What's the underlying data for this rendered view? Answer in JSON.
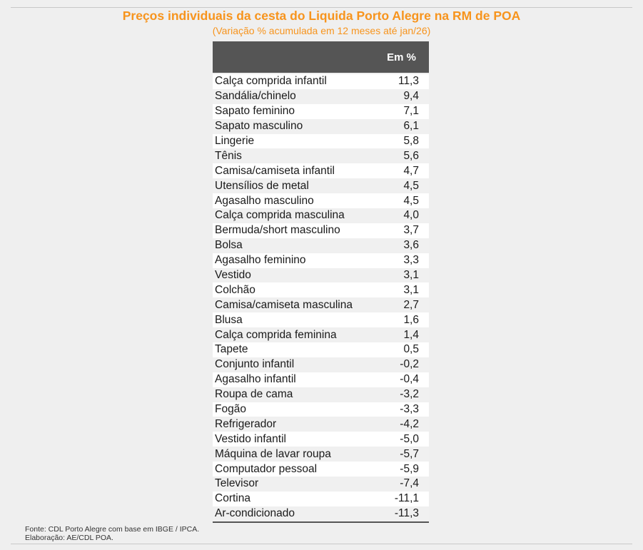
{
  "title": "Preços individuais da cesta do Liquida Porto Alegre na RM de POA",
  "subtitle": "(Variação % acumulada em 12 meses até jan/26)",
  "table": {
    "header": "Em %",
    "rows": [
      {
        "item": "Calça comprida infantil",
        "value": "11,3"
      },
      {
        "item": "Sandália/chinelo",
        "value": "9,4"
      },
      {
        "item": "Sapato feminino",
        "value": "7,1"
      },
      {
        "item": "Sapato masculino",
        "value": "6,1"
      },
      {
        "item": "Lingerie",
        "value": "5,8"
      },
      {
        "item": "Tênis",
        "value": "5,6"
      },
      {
        "item": "Camisa/camiseta infantil",
        "value": "4,7"
      },
      {
        "item": "Utensílios de metal",
        "value": "4,5"
      },
      {
        "item": "Agasalho masculino",
        "value": "4,5"
      },
      {
        "item": "Calça comprida masculina",
        "value": "4,0"
      },
      {
        "item": "Bermuda/short masculino",
        "value": "3,7"
      },
      {
        "item": "Bolsa",
        "value": "3,6"
      },
      {
        "item": "Agasalho feminino",
        "value": "3,3"
      },
      {
        "item": "Vestido",
        "value": "3,1"
      },
      {
        "item": "Colchão",
        "value": "3,1"
      },
      {
        "item": "Camisa/camiseta masculina",
        "value": "2,7"
      },
      {
        "item": "Blusa",
        "value": "1,6"
      },
      {
        "item": "Calça comprida feminina",
        "value": "1,4"
      },
      {
        "item": "Tapete",
        "value": "0,5"
      },
      {
        "item": "Conjunto infantil",
        "value": "-0,2"
      },
      {
        "item": "Agasalho infantil",
        "value": "-0,4"
      },
      {
        "item": "Roupa de cama",
        "value": "-3,2"
      },
      {
        "item": "Fogão",
        "value": "-3,3"
      },
      {
        "item": "Refrigerador",
        "value": "-4,2"
      },
      {
        "item": "Vestido infantil",
        "value": "-5,0"
      },
      {
        "item": "Máquina de lavar roupa",
        "value": "-5,7"
      },
      {
        "item": "Computador pessoal",
        "value": "-5,9"
      },
      {
        "item": "Televisor",
        "value": "-7,4"
      },
      {
        "item": "Cortina",
        "value": "-11,1"
      },
      {
        "item": "Ar-condicionado",
        "value": "-11,3"
      }
    ]
  },
  "source": "Fonte: CDL Porto Alegre com base em IBGE / IPCA.",
  "credit": "Elaboração: AE/CDL POA.",
  "colors": {
    "title": "#f7941d",
    "header_bg": "#555555"
  }
}
